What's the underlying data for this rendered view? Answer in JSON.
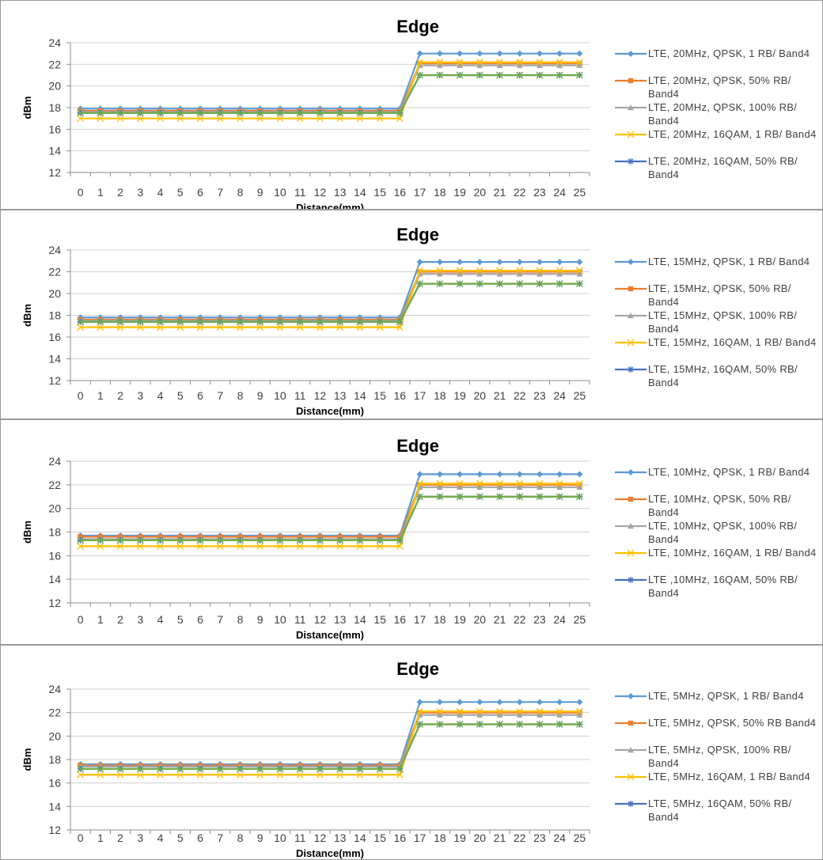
{
  "chart_data": [
    {
      "type": "line",
      "title": "Edge",
      "xlabel": "Distance(mm)",
      "ylabel": "dBm",
      "ylim": [
        12,
        24
      ],
      "yticks": [
        "12",
        "14",
        "16",
        "18",
        "20",
        "22",
        "24"
      ],
      "categories": [
        "0",
        "1",
        "2",
        "3",
        "4",
        "5",
        "6",
        "7",
        "8",
        "9",
        "10",
        "11",
        "12",
        "13",
        "14",
        "15",
        "16",
        "17",
        "18",
        "19",
        "20",
        "21",
        "22",
        "23",
        "24",
        "25"
      ],
      "grid": "horizontal",
      "legend_position": "right",
      "series": [
        {
          "name": "LTE, 20MHz, QPSK, 1 RB/ Band4",
          "color": "#5b9bd5",
          "marker": "diamond",
          "values": [
            17.9,
            17.9,
            17.9,
            17.9,
            17.9,
            17.9,
            17.9,
            17.9,
            17.9,
            17.9,
            17.9,
            17.9,
            17.9,
            17.9,
            17.9,
            17.9,
            17.9,
            23.0,
            23.0,
            23.0,
            23.0,
            23.0,
            23.0,
            23.0,
            23.0,
            23.0
          ]
        },
        {
          "name": "LTE, 20MHz, QPSK, 50% RB/ Band4",
          "color": "#ed7d31",
          "marker": "square",
          "values": [
            17.7,
            17.7,
            17.7,
            17.7,
            17.7,
            17.7,
            17.7,
            17.7,
            17.7,
            17.7,
            17.7,
            17.7,
            17.7,
            17.7,
            17.7,
            17.7,
            17.7,
            22.1,
            22.1,
            22.1,
            22.1,
            22.1,
            22.1,
            22.1,
            22.1,
            22.1
          ]
        },
        {
          "name": "LTE, 20MHz, QPSK, 100% RB/ Band4",
          "color": "#a5a5a5",
          "marker": "triangle",
          "values": [
            17.6,
            17.6,
            17.6,
            17.6,
            17.6,
            17.6,
            17.6,
            17.6,
            17.6,
            17.6,
            17.6,
            17.6,
            17.6,
            17.6,
            17.6,
            17.6,
            17.6,
            21.9,
            21.9,
            21.9,
            21.9,
            21.9,
            21.9,
            21.9,
            21.9,
            21.9
          ]
        },
        {
          "name": "LTE, 20MHz, 16QAM, 1 RB/ Band4",
          "color": "#ffc000",
          "marker": "x",
          "values": [
            17.0,
            17.0,
            17.0,
            17.0,
            17.0,
            17.0,
            17.0,
            17.0,
            17.0,
            17.0,
            17.0,
            17.0,
            17.0,
            17.0,
            17.0,
            17.0,
            17.0,
            22.2,
            22.2,
            22.2,
            22.2,
            22.2,
            22.2,
            22.2,
            22.2,
            22.2
          ]
        },
        {
          "name": "LTE, 20MHz, 16QAM, 50% RB/ Band4",
          "color": "#4472c4",
          "marker": "star",
          "values": [
            17.5,
            17.5,
            17.5,
            17.5,
            17.5,
            17.5,
            17.5,
            17.5,
            17.5,
            17.5,
            17.5,
            17.5,
            17.5,
            17.5,
            17.5,
            17.5,
            17.5,
            21.0,
            21.0,
            21.0,
            21.0,
            21.0,
            21.0,
            21.0,
            21.0,
            21.0
          ]
        },
        {
          "color": "#70ad47",
          "marker": "x",
          "values": [
            17.5,
            17.5,
            17.5,
            17.5,
            17.5,
            17.5,
            17.5,
            17.5,
            17.5,
            17.5,
            17.5,
            17.5,
            17.5,
            17.5,
            17.5,
            17.5,
            17.5,
            21.0,
            21.0,
            21.0,
            21.0,
            21.0,
            21.0,
            21.0,
            21.0,
            21.0
          ]
        }
      ]
    },
    {
      "type": "line",
      "title": "Edge",
      "xlabel": "Distance(mm)",
      "ylabel": "dBm",
      "ylim": [
        12,
        24
      ],
      "yticks": [
        "12",
        "14",
        "16",
        "18",
        "20",
        "22",
        "24"
      ],
      "categories": [
        "0",
        "1",
        "2",
        "3",
        "4",
        "5",
        "6",
        "7",
        "8",
        "9",
        "10",
        "11",
        "12",
        "13",
        "14",
        "15",
        "16",
        "17",
        "18",
        "19",
        "20",
        "21",
        "22",
        "23",
        "24",
        "25"
      ],
      "grid": "horizontal",
      "legend_position": "right",
      "series": [
        {
          "name": "LTE, 15MHz, QPSK, 1 RB/ Band4",
          "color": "#5b9bd5",
          "marker": "diamond",
          "values": [
            17.8,
            17.8,
            17.8,
            17.8,
            17.8,
            17.8,
            17.8,
            17.8,
            17.8,
            17.8,
            17.8,
            17.8,
            17.8,
            17.8,
            17.8,
            17.8,
            17.8,
            22.9,
            22.9,
            22.9,
            22.9,
            22.9,
            22.9,
            22.9,
            22.9,
            22.9
          ]
        },
        {
          "name": "LTE, 15MHz, QPSK, 50% RB/ Band4",
          "color": "#ed7d31",
          "marker": "square",
          "values": [
            17.6,
            17.6,
            17.6,
            17.6,
            17.6,
            17.6,
            17.6,
            17.6,
            17.6,
            17.6,
            17.6,
            17.6,
            17.6,
            17.6,
            17.6,
            17.6,
            17.6,
            22.0,
            22.0,
            22.0,
            22.0,
            22.0,
            22.0,
            22.0,
            22.0,
            22.0
          ]
        },
        {
          "name": "LTE, 15MHz, QPSK, 100% RB/ Band4",
          "color": "#a5a5a5",
          "marker": "triangle",
          "values": [
            17.5,
            17.5,
            17.5,
            17.5,
            17.5,
            17.5,
            17.5,
            17.5,
            17.5,
            17.5,
            17.5,
            17.5,
            17.5,
            17.5,
            17.5,
            17.5,
            17.5,
            21.8,
            21.8,
            21.8,
            21.8,
            21.8,
            21.8,
            21.8,
            21.8,
            21.8
          ]
        },
        {
          "name": "LTE, 15MHz, 16QAM, 1 RB/ Band4",
          "color": "#ffc000",
          "marker": "x",
          "values": [
            16.9,
            16.9,
            16.9,
            16.9,
            16.9,
            16.9,
            16.9,
            16.9,
            16.9,
            16.9,
            16.9,
            16.9,
            16.9,
            16.9,
            16.9,
            16.9,
            16.9,
            22.1,
            22.1,
            22.1,
            22.1,
            22.1,
            22.1,
            22.1,
            22.1,
            22.1
          ]
        },
        {
          "name": "LTE, 15MHz, 16QAM, 50% RB/ Band4",
          "color": "#4472c4",
          "marker": "star",
          "values": [
            17.4,
            17.4,
            17.4,
            17.4,
            17.4,
            17.4,
            17.4,
            17.4,
            17.4,
            17.4,
            17.4,
            17.4,
            17.4,
            17.4,
            17.4,
            17.4,
            17.4,
            20.9,
            20.9,
            20.9,
            20.9,
            20.9,
            20.9,
            20.9,
            20.9,
            20.9
          ]
        },
        {
          "color": "#70ad47",
          "marker": "x",
          "values": [
            17.4,
            17.4,
            17.4,
            17.4,
            17.4,
            17.4,
            17.4,
            17.4,
            17.4,
            17.4,
            17.4,
            17.4,
            17.4,
            17.4,
            17.4,
            17.4,
            17.4,
            20.9,
            20.9,
            20.9,
            20.9,
            20.9,
            20.9,
            20.9,
            20.9,
            20.9
          ]
        }
      ]
    },
    {
      "type": "line",
      "title": "Edge",
      "xlabel": "Distance(mm)",
      "ylabel": "dBm",
      "ylim": [
        12,
        24
      ],
      "yticks": [
        "12",
        "14",
        "16",
        "18",
        "20",
        "22",
        "24"
      ],
      "categories": [
        "0",
        "1",
        "2",
        "3",
        "4",
        "5",
        "6",
        "7",
        "8",
        "9",
        "10",
        "11",
        "12",
        "13",
        "14",
        "15",
        "16",
        "17",
        "18",
        "19",
        "20",
        "21",
        "22",
        "23",
        "24",
        "25"
      ],
      "grid": "horizontal",
      "legend_position": "right",
      "series": [
        {
          "name": "LTE, 10MHz, QPSK, 1 RB/ Band4",
          "color": "#5b9bd5",
          "marker": "diamond",
          "values": [
            17.7,
            17.7,
            17.7,
            17.7,
            17.7,
            17.7,
            17.7,
            17.7,
            17.7,
            17.7,
            17.7,
            17.7,
            17.7,
            17.7,
            17.7,
            17.7,
            17.7,
            22.9,
            22.9,
            22.9,
            22.9,
            22.9,
            22.9,
            22.9,
            22.9,
            22.9
          ]
        },
        {
          "name": "LTE, 10MHz, QPSK, 50% RB/ Band4",
          "color": "#ed7d31",
          "marker": "square",
          "values": [
            17.6,
            17.6,
            17.6,
            17.6,
            17.6,
            17.6,
            17.6,
            17.6,
            17.6,
            17.6,
            17.6,
            17.6,
            17.6,
            17.6,
            17.6,
            17.6,
            17.6,
            22.0,
            22.0,
            22.0,
            22.0,
            22.0,
            22.0,
            22.0,
            22.0,
            22.0
          ]
        },
        {
          "name": "LTE, 10MHz, QPSK, 100% RB/ Band4",
          "color": "#a5a5a5",
          "marker": "triangle",
          "values": [
            17.4,
            17.4,
            17.4,
            17.4,
            17.4,
            17.4,
            17.4,
            17.4,
            17.4,
            17.4,
            17.4,
            17.4,
            17.4,
            17.4,
            17.4,
            17.4,
            17.4,
            21.8,
            21.8,
            21.8,
            21.8,
            21.8,
            21.8,
            21.8,
            21.8,
            21.8
          ]
        },
        {
          "name": "LTE, 10MHz, 16QAM, 1 RB/ Band4",
          "color": "#ffc000",
          "marker": "x",
          "values": [
            16.8,
            16.8,
            16.8,
            16.8,
            16.8,
            16.8,
            16.8,
            16.8,
            16.8,
            16.8,
            16.8,
            16.8,
            16.8,
            16.8,
            16.8,
            16.8,
            16.8,
            22.1,
            22.1,
            22.1,
            22.1,
            22.1,
            22.1,
            22.1,
            22.1,
            22.1
          ]
        },
        {
          "name": "LTE ,10MHz, 16QAM, 50% RB/ Band4",
          "color": "#4472c4",
          "marker": "star",
          "values": [
            17.3,
            17.3,
            17.3,
            17.3,
            17.3,
            17.3,
            17.3,
            17.3,
            17.3,
            17.3,
            17.3,
            17.3,
            17.3,
            17.3,
            17.3,
            17.3,
            17.3,
            21.0,
            21.0,
            21.0,
            21.0,
            21.0,
            21.0,
            21.0,
            21.0,
            21.0
          ]
        },
        {
          "color": "#70ad47",
          "marker": "x",
          "values": [
            17.3,
            17.3,
            17.3,
            17.3,
            17.3,
            17.3,
            17.3,
            17.3,
            17.3,
            17.3,
            17.3,
            17.3,
            17.3,
            17.3,
            17.3,
            17.3,
            17.3,
            21.0,
            21.0,
            21.0,
            21.0,
            21.0,
            21.0,
            21.0,
            21.0,
            21.0
          ]
        }
      ]
    },
    {
      "type": "line",
      "title": "Edge",
      "xlabel": "Distance(mm)",
      "ylabel": "dBm",
      "ylim": [
        12,
        24
      ],
      "yticks": [
        "12",
        "14",
        "16",
        "18",
        "20",
        "22",
        "24"
      ],
      "categories": [
        "0",
        "1",
        "2",
        "3",
        "4",
        "5",
        "6",
        "7",
        "8",
        "9",
        "10",
        "11",
        "12",
        "13",
        "14",
        "15",
        "16",
        "17",
        "18",
        "19",
        "20",
        "21",
        "22",
        "23",
        "24",
        "25"
      ],
      "grid": "horizontal",
      "legend_position": "right",
      "series": [
        {
          "name": "LTE, 5MHz, QPSK, 1 RB/ Band4",
          "color": "#5b9bd5",
          "marker": "diamond",
          "values": [
            17.6,
            17.6,
            17.6,
            17.6,
            17.6,
            17.6,
            17.6,
            17.6,
            17.6,
            17.6,
            17.6,
            17.6,
            17.6,
            17.6,
            17.6,
            17.6,
            17.6,
            22.9,
            22.9,
            22.9,
            22.9,
            22.9,
            22.9,
            22.9,
            22.9,
            22.9
          ]
        },
        {
          "name": "LTE, 5MHz, QPSK, 50% RB Band4",
          "color": "#ed7d31",
          "marker": "square",
          "values": [
            17.5,
            17.5,
            17.5,
            17.5,
            17.5,
            17.5,
            17.5,
            17.5,
            17.5,
            17.5,
            17.5,
            17.5,
            17.5,
            17.5,
            17.5,
            17.5,
            17.5,
            22.0,
            22.0,
            22.0,
            22.0,
            22.0,
            22.0,
            22.0,
            22.0,
            22.0
          ]
        },
        {
          "name": "LTE, 5MHz, QPSK, 100% RB/ Band4",
          "color": "#a5a5a5",
          "marker": "triangle",
          "values": [
            17.4,
            17.4,
            17.4,
            17.4,
            17.4,
            17.4,
            17.4,
            17.4,
            17.4,
            17.4,
            17.4,
            17.4,
            17.4,
            17.4,
            17.4,
            17.4,
            17.4,
            21.8,
            21.8,
            21.8,
            21.8,
            21.8,
            21.8,
            21.8,
            21.8,
            21.8
          ]
        },
        {
          "name": "LTE, 5MHz, 16QAM, 1 RB/ Band4",
          "color": "#ffc000",
          "marker": "x",
          "values": [
            16.7,
            16.7,
            16.7,
            16.7,
            16.7,
            16.7,
            16.7,
            16.7,
            16.7,
            16.7,
            16.7,
            16.7,
            16.7,
            16.7,
            16.7,
            16.7,
            16.7,
            22.1,
            22.1,
            22.1,
            22.1,
            22.1,
            22.1,
            22.1,
            22.1,
            22.1
          ]
        },
        {
          "name": "LTE, 5MHz, 16QAM, 50% RB/ Band4",
          "color": "#4472c4",
          "marker": "star",
          "values": [
            17.2,
            17.2,
            17.2,
            17.2,
            17.2,
            17.2,
            17.2,
            17.2,
            17.2,
            17.2,
            17.2,
            17.2,
            17.2,
            17.2,
            17.2,
            17.2,
            17.2,
            21.0,
            21.0,
            21.0,
            21.0,
            21.0,
            21.0,
            21.0,
            21.0,
            21.0
          ]
        },
        {
          "color": "#70ad47",
          "marker": "x",
          "values": [
            17.2,
            17.2,
            17.2,
            17.2,
            17.2,
            17.2,
            17.2,
            17.2,
            17.2,
            17.2,
            17.2,
            17.2,
            17.2,
            17.2,
            17.2,
            17.2,
            17.2,
            21.0,
            21.0,
            21.0,
            21.0,
            21.0,
            21.0,
            21.0,
            21.0,
            21.0
          ]
        }
      ]
    }
  ]
}
